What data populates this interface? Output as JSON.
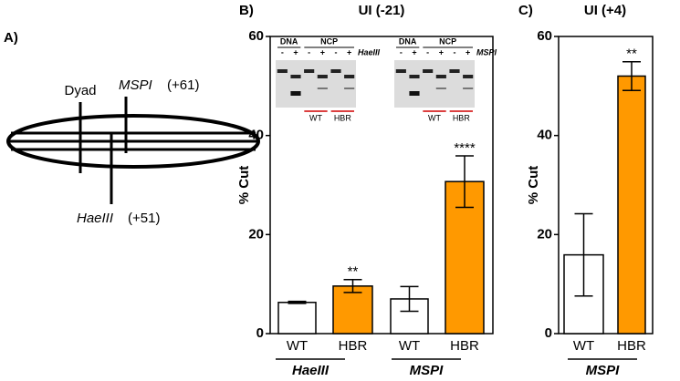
{
  "diagram": {
    "label": "A)",
    "dyad": "Dyad",
    "site1": {
      "name": "MSPI",
      "position": "(+61)"
    },
    "site2": {
      "name": "HaeIII",
      "position": "(+51)"
    }
  },
  "chart_data": [
    {
      "type": "bar",
      "panel": "B)",
      "title": "UI (-21)",
      "y_label": "% Cut",
      "categories": [
        "WT",
        "HBR",
        "WT",
        "HBR"
      ],
      "values": [
        6.3,
        9.6,
        7.0,
        30.7
      ],
      "errors": [
        0.2,
        1.3,
        2.5,
        5.2
      ],
      "colors": [
        "#ffffff",
        "#ff9900",
        "#ffffff",
        "#ff9900"
      ],
      "annotations": [
        null,
        "**",
        null,
        "****"
      ],
      "groups": [
        "HaeIII",
        "MSPI"
      ],
      "ylim": [
        0,
        60
      ],
      "yticks": [
        0,
        20,
        40,
        60
      ],
      "inset_gels": [
        {
          "enzyme": "HaeIII",
          "top_labels": [
            "DNA",
            "NCP"
          ],
          "lanes": [
            "-",
            "+",
            "-",
            "+",
            "-",
            "+"
          ],
          "bottom_labels": [
            "WT",
            "HBR"
          ]
        },
        {
          "enzyme": "MSPI",
          "top_labels": [
            "DNA",
            "NCP"
          ],
          "lanes": [
            "-",
            "+",
            "-",
            "+",
            "-",
            "+"
          ],
          "bottom_labels": [
            "WT",
            "HBR"
          ]
        }
      ]
    },
    {
      "type": "bar",
      "panel": "C)",
      "title": "UI (+4)",
      "y_label": "% Cut",
      "categories": [
        "WT",
        "HBR"
      ],
      "values": [
        15.9,
        52.0
      ],
      "errors": [
        8.3,
        2.9
      ],
      "colors": [
        "#ffffff",
        "#ff9900"
      ],
      "annotations": [
        null,
        "**"
      ],
      "groups": [
        "MSPI"
      ],
      "ylim": [
        0,
        60
      ],
      "yticks": [
        0,
        20,
        40,
        60
      ]
    }
  ]
}
